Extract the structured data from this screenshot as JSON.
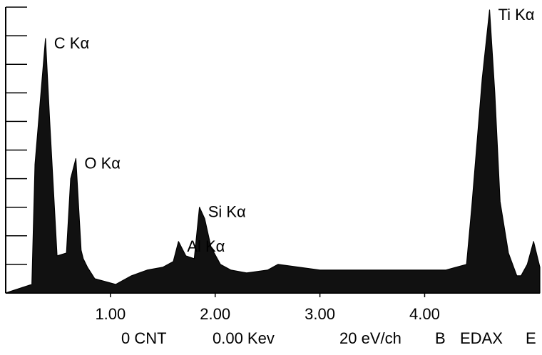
{
  "chart_data": {
    "type": "area",
    "title": "",
    "xlabel": "",
    "ylabel": "",
    "xlim": [
      0,
      5.1
    ],
    "ylim": [
      0,
      10
    ],
    "x_ticks": [
      {
        "value": 1.0,
        "label": "1.00"
      },
      {
        "value": 2.0,
        "label": "2.00"
      },
      {
        "value": 3.0,
        "label": "3.00"
      },
      {
        "value": 4.0,
        "label": "4.00"
      }
    ],
    "y_ticks": [
      0,
      1,
      2,
      3,
      4,
      5,
      6,
      7,
      8,
      9,
      10
    ],
    "series": [
      {
        "x": [
          0.0,
          0.25,
          0.28,
          0.38,
          0.42,
          0.49,
          0.58,
          0.62,
          0.67,
          0.72,
          0.74,
          0.78,
          0.85,
          0.95,
          1.05,
          1.2,
          1.35,
          1.5,
          1.6,
          1.65,
          1.72,
          1.8,
          1.85,
          1.9,
          1.96,
          2.05,
          2.15,
          2.3,
          2.5,
          2.6,
          2.8,
          3.0,
          3.3,
          3.6,
          3.9,
          4.2,
          4.4,
          4.45,
          4.55,
          4.62,
          4.67,
          4.72,
          4.8,
          4.88,
          4.92,
          4.98,
          5.04,
          5.1
        ],
        "values": [
          0.0,
          0.3,
          4.5,
          8.9,
          6.0,
          1.3,
          1.4,
          4.0,
          4.7,
          1.5,
          1.2,
          0.9,
          0.5,
          0.4,
          0.3,
          0.6,
          0.8,
          0.9,
          1.1,
          1.8,
          1.3,
          1.2,
          3.0,
          2.6,
          1.6,
          1.0,
          0.8,
          0.7,
          0.8,
          1.0,
          0.9,
          0.8,
          0.8,
          0.8,
          0.8,
          0.8,
          1.0,
          3.0,
          7.5,
          9.9,
          7.0,
          3.2,
          1.4,
          0.6,
          0.6,
          1.0,
          1.8,
          0.9
        ]
      }
    ],
    "annotations": [
      {
        "text": "C Kα",
        "x": 0.38,
        "y": 8.9
      },
      {
        "text": "O Kα",
        "x": 0.67,
        "y": 4.7
      },
      {
        "text": "Al Kα",
        "x": 1.65,
        "y": 1.8
      },
      {
        "text": "Si Kα",
        "x": 1.85,
        "y": 3.0
      },
      {
        "text": "Ti Kα",
        "x": 4.62,
        "y": 9.9
      }
    ],
    "footer": {
      "counts": "0 CNT",
      "energy": "0.00 Kev",
      "resolution": "20 eV/ch",
      "marker_b": "B",
      "brand": "EDAX",
      "marker_e": "E"
    },
    "grid": false,
    "legend": "none"
  }
}
